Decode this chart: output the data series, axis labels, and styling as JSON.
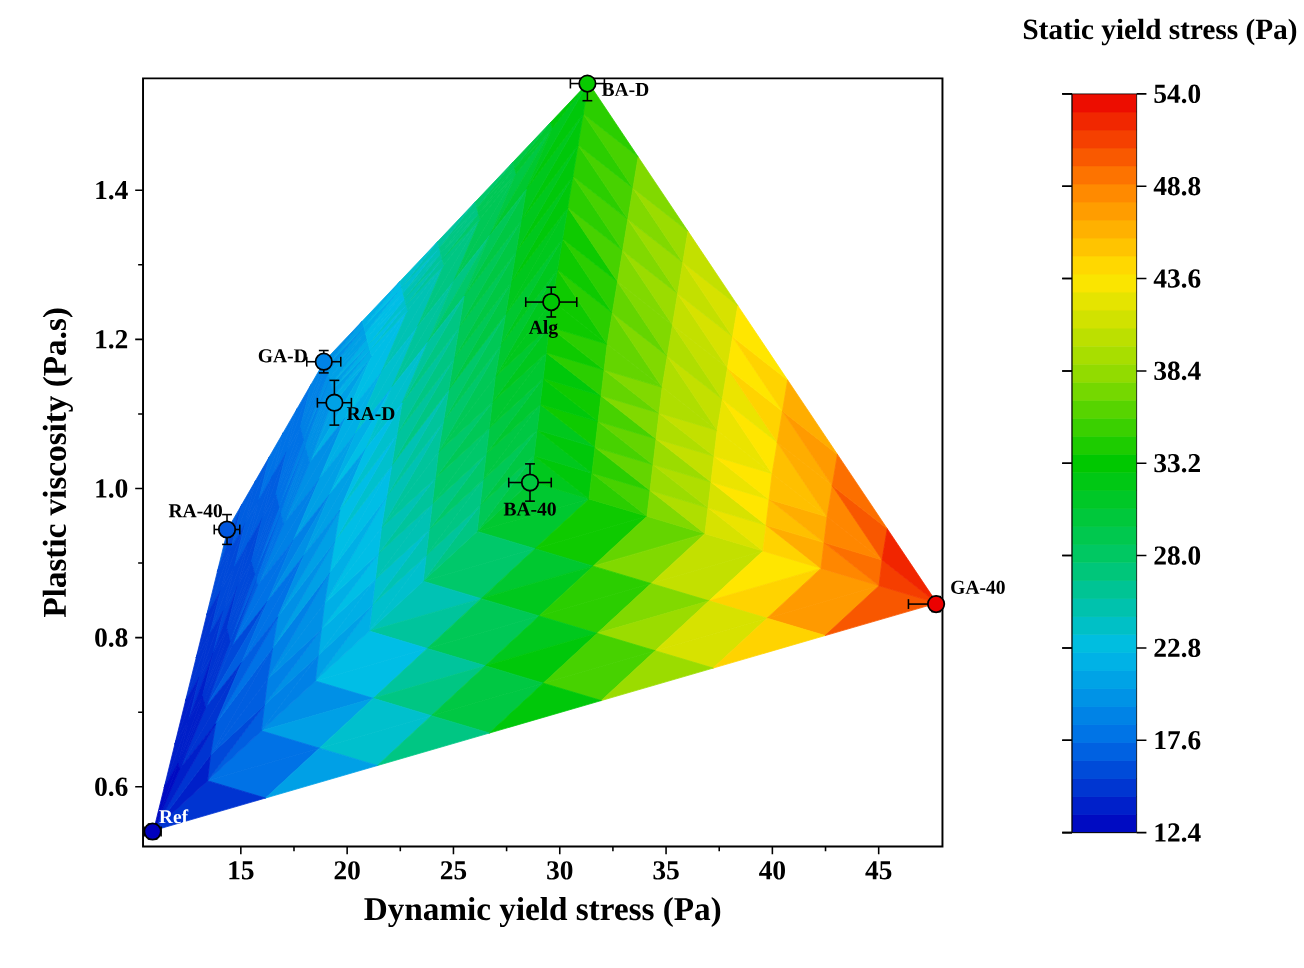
{
  "chart_data": {
    "type": "scatter",
    "xlabel": "Dynamic yield stress (Pa)",
    "ylabel": "Plastic viscosity (Pa.s)",
    "clabel": "Static yield stress (Pa)",
    "xlim": [
      10.4,
      48
    ],
    "ylim": [
      0.52,
      1.55
    ],
    "xticks": [
      15,
      20,
      25,
      30,
      35,
      40,
      45
    ],
    "yticks": [
      0.6,
      0.8,
      {
        "value": 1.0,
        "label": "1.0"
      },
      1.2,
      1.4
    ],
    "clim": [
      12.4,
      54.0
    ],
    "cticks": [
      {
        "value": 12.4,
        "label": "12.4"
      },
      {
        "value": 17.6,
        "label": "17.6"
      },
      {
        "value": 22.8,
        "label": "22.8"
      },
      {
        "value": 28.0,
        "label": "28.0"
      },
      {
        "value": 33.2,
        "label": "33.2"
      },
      {
        "value": 38.4,
        "label": "38.4"
      },
      {
        "value": 43.6,
        "label": "43.6"
      },
      {
        "value": 48.8,
        "label": "48.8"
      },
      {
        "value": 54.0,
        "label": "54.0"
      }
    ],
    "marker": "circle",
    "series": [
      {
        "color": "#000000",
        "x": [
          10.85,
          14.35,
          18.9,
          19.4,
          29.6,
          28.6,
          31.3,
          47.7
        ],
        "values": [
          0.54,
          0.945,
          1.17,
          1.115,
          1.25,
          1.008,
          1.543,
          0.845
        ],
        "cvalues": [
          12.4,
          16.5,
          19,
          21,
          33,
          30,
          33.5,
          54
        ],
        "errors": [
          0.01,
          0.02,
          0.015,
          0.03,
          0.02,
          0.025,
          [
            1.52,
            1.55
          ],
          0.01
        ],
        "xerrors": [
          0.4,
          0.6,
          0.8,
          0.8,
          1.2,
          1.0,
          0.8,
          [
            46.4,
            48.0
          ]
        ]
      }
    ],
    "annotations": [
      {
        "text": "Ref",
        "x": 10.85,
        "y": 0.54
      },
      {
        "text": "RA-40",
        "x": 14.35,
        "y": 0.945
      },
      {
        "text": "GA-D",
        "x": 18.9,
        "y": 1.17
      },
      {
        "text": "RA-D",
        "x": 19.4,
        "y": 1.115
      },
      {
        "text": "Alg",
        "x": 29.6,
        "y": 1.25
      },
      {
        "text": "BA-40",
        "x": 28.6,
        "y": 1.008
      },
      {
        "text": "BA-D",
        "x": 31.3,
        "y": 1.543
      },
      {
        "text": "GA-40",
        "x": 47.7,
        "y": 0.845
      }
    ]
  }
}
